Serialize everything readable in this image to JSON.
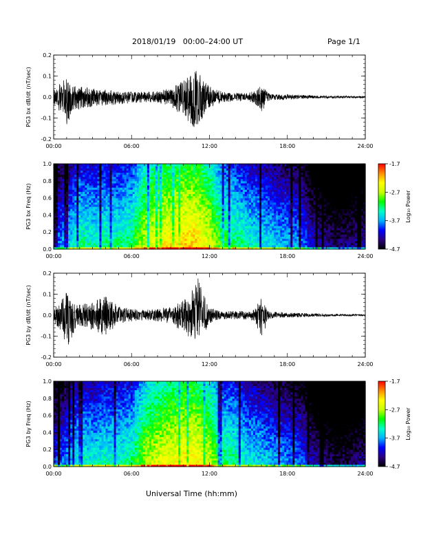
{
  "header": {
    "title": "2018/01/19   00:00–24:00 UT",
    "page": "Page 1/1"
  },
  "footer": {
    "xlabel": "Universal Time (hh:mm)"
  },
  "colors": {
    "trace": "#000000",
    "colormap": [
      "#000000",
      "#2b0080",
      "#0000ff",
      "#00b4ff",
      "#00ffc8",
      "#00ff00",
      "#c8ff00",
      "#ffff00",
      "#ff8c00",
      "#ff0000"
    ]
  },
  "colorbar": {
    "label": "Log₁₀ Power",
    "ticks": [
      "-1.7",
      "-2.7",
      "-3.7",
      "-4.7"
    ],
    "range": [
      -4.7,
      -1.7
    ]
  },
  "chart_data": [
    {
      "type": "line",
      "ylabel": "PG3 bx dB/dt (nT/sec)",
      "xlim": [
        0,
        24
      ],
      "ylim": [
        -0.2,
        0.2
      ],
      "x_ticks": [
        "00:00",
        "06:00",
        "12:00",
        "18:00",
        "24:00"
      ],
      "y_ticks": [
        "0.2",
        "0.1",
        "0.0",
        "-0.1",
        "-0.2"
      ],
      "grid": false,
      "envelope": {
        "x_hours": [
          0,
          0.5,
          1,
          1.5,
          2,
          3,
          4,
          5,
          6,
          7,
          8,
          9,
          10,
          10.5,
          11,
          11.5,
          12,
          13,
          14,
          15,
          15.5,
          16,
          16.5,
          17,
          18,
          19,
          20,
          21,
          22,
          23,
          24
        ],
        "upper": [
          0.04,
          0.07,
          0.09,
          0.06,
          0.05,
          0.04,
          0.035,
          0.03,
          0.025,
          0.025,
          0.03,
          0.04,
          0.08,
          0.1,
          0.13,
          0.09,
          0.05,
          0.025,
          0.02,
          0.02,
          0.03,
          0.06,
          0.02,
          0.015,
          0.012,
          0.01,
          0.008,
          0.006,
          0.006,
          0.005,
          0.004
        ],
        "lower": [
          -0.04,
          -0.07,
          -0.15,
          -0.08,
          -0.06,
          -0.05,
          -0.04,
          -0.035,
          -0.03,
          -0.025,
          -0.03,
          -0.04,
          -0.1,
          -0.12,
          -0.16,
          -0.1,
          -0.05,
          -0.025,
          -0.02,
          -0.02,
          -0.03,
          -0.08,
          -0.02,
          -0.015,
          -0.012,
          -0.01,
          -0.008,
          -0.006,
          -0.006,
          -0.005,
          -0.004
        ]
      }
    },
    {
      "type": "heatmap",
      "ylabel": "PG3 bx Freq (Hz)",
      "xlim": [
        0,
        24
      ],
      "ylim": [
        0,
        1
      ],
      "x_ticks": [
        "00:00",
        "06:00",
        "12:00",
        "18:00",
        "24:00"
      ],
      "y_ticks": [
        "1.0",
        "0.8",
        "0.6",
        "0.4",
        "0.2",
        "0.0"
      ],
      "colorbar_label": "Log₁₀ Power",
      "activity_profile": {
        "x_hours": [
          0,
          1,
          2,
          3,
          4,
          5,
          6,
          7,
          8,
          9,
          10,
          11,
          12,
          13,
          14,
          15,
          16,
          17,
          18,
          19,
          20,
          21,
          22,
          23,
          24
        ],
        "log10_power_at_low_freq": [
          -3.8,
          -3.6,
          -3.2,
          -3.3,
          -3.2,
          -3.2,
          -3.1,
          -2.6,
          -2.4,
          -2.3,
          -2.2,
          -2.2,
          -2.5,
          -3.0,
          -3.1,
          -3.3,
          -3.4,
          -3.5,
          -3.6,
          -3.7,
          -4.1,
          -4.3,
          -4.4,
          -4.3,
          -4.2
        ]
      }
    },
    {
      "type": "line",
      "ylabel": "PG3 by dB/dt (nT/sec)",
      "xlim": [
        0,
        24
      ],
      "ylim": [
        -0.2,
        0.2
      ],
      "x_ticks": [
        "00:00",
        "06:00",
        "12:00",
        "18:00",
        "24:00"
      ],
      "y_ticks": [
        "0.2",
        "0.1",
        "0.0",
        "-0.1",
        "-0.2"
      ],
      "grid": false,
      "envelope": {
        "x_hours": [
          0,
          0.5,
          1,
          1.5,
          2,
          3,
          4,
          5,
          6,
          7,
          8,
          9,
          10,
          10.5,
          11,
          11.5,
          12,
          13,
          14,
          15,
          15.5,
          16,
          16.5,
          17,
          18,
          19,
          20,
          21,
          22,
          23,
          24
        ],
        "upper": [
          0.03,
          0.06,
          0.11,
          0.06,
          0.05,
          0.06,
          0.1,
          0.04,
          0.03,
          0.025,
          0.03,
          0.04,
          0.07,
          0.1,
          0.2,
          0.11,
          0.04,
          0.02,
          0.02,
          0.02,
          0.03,
          0.09,
          0.02,
          0.015,
          0.012,
          0.01,
          0.008,
          0.006,
          0.005,
          0.005,
          0.004
        ],
        "lower": [
          -0.03,
          -0.08,
          -0.17,
          -0.09,
          -0.05,
          -0.07,
          -0.1,
          -0.04,
          -0.03,
          -0.025,
          -0.03,
          -0.04,
          -0.08,
          -0.11,
          -0.13,
          -0.1,
          -0.04,
          -0.02,
          -0.02,
          -0.02,
          -0.03,
          -0.13,
          -0.02,
          -0.015,
          -0.012,
          -0.01,
          -0.008,
          -0.006,
          -0.005,
          -0.005,
          -0.004
        ]
      }
    },
    {
      "type": "heatmap",
      "ylabel": "PG3 by Freq (Hz)",
      "xlim": [
        0,
        24
      ],
      "ylim": [
        0,
        1
      ],
      "x_ticks": [
        "00:00",
        "06:00",
        "12:00",
        "18:00",
        "24:00"
      ],
      "y_ticks": [
        "1.0",
        "0.8",
        "0.6",
        "0.4",
        "0.2",
        "0.0"
      ],
      "colorbar_label": "Log₁₀ Power",
      "activity_profile": {
        "x_hours": [
          0,
          1,
          2,
          3,
          4,
          5,
          6,
          7,
          8,
          9,
          10,
          11,
          12,
          13,
          14,
          15,
          16,
          17,
          18,
          19,
          20,
          21,
          22,
          23,
          24
        ],
        "log10_power_at_low_freq": [
          -3.9,
          -3.7,
          -3.3,
          -3.4,
          -3.3,
          -3.3,
          -3.2,
          -2.7,
          -2.5,
          -2.4,
          -2.3,
          -2.3,
          -2.6,
          -3.1,
          -3.2,
          -3.4,
          -3.5,
          -3.6,
          -3.7,
          -3.8,
          -4.2,
          -4.4,
          -4.5,
          -4.4,
          -4.3
        ]
      }
    }
  ]
}
